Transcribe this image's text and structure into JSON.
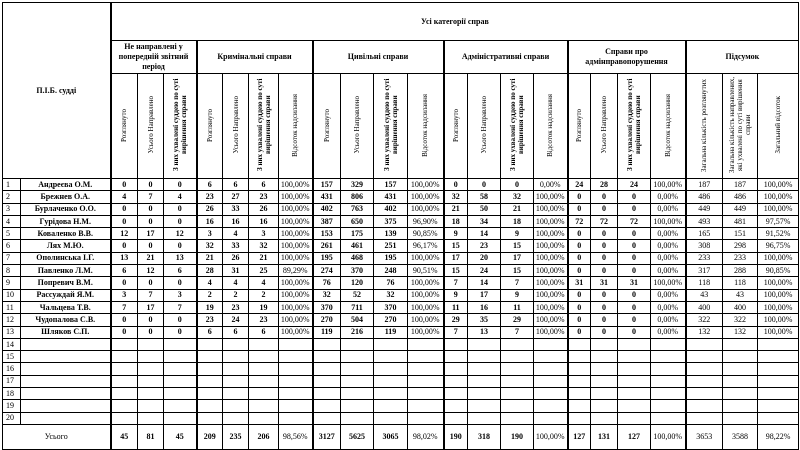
{
  "header": {
    "name_col": "П.І.Б. судді",
    "all_categories": "Усі категорії справ",
    "groups": {
      "not_sent": "Не направлені у попередній звітний період",
      "criminal": "Кримінальні справи",
      "civil": "Цивільні справи",
      "administrative": "Адміністративні справи",
      "offenses": "Справи про адмінправопорушення",
      "summary": "Підсумок"
    },
    "sub": {
      "considered": "Розглянуто",
      "total_sent": "Усього Направлено",
      "of_them": "З них ухвалені суддею по суті вирішення справи",
      "percent": "Відсоток надсилання",
      "sum_considered": "Загальна кількість розглянутих",
      "sum_sent": "Загальна кількість направлених, які ухвалені по суті вирішення справи",
      "sum_percent": "Загальний відсоток"
    }
  },
  "rows": [
    {
      "n": "1",
      "name": "Андреєва О.М.",
      "v": [
        "0",
        "0",
        "0",
        "6",
        "6",
        "6",
        "100,00%",
        "157",
        "329",
        "157",
        "100,00%",
        "0",
        "0",
        "0",
        "0,00%",
        "24",
        "28",
        "24",
        "100,00%",
        "187",
        "187",
        "100,00%"
      ]
    },
    {
      "n": "2",
      "name": "Брежнев О.А.",
      "v": [
        "4",
        "7",
        "4",
        "23",
        "27",
        "23",
        "100,00%",
        "431",
        "806",
        "431",
        "100,00%",
        "32",
        "58",
        "32",
        "100,00%",
        "0",
        "0",
        "0",
        "0,00%",
        "486",
        "486",
        "100,00%"
      ]
    },
    {
      "n": "3",
      "name": "Бурлаченко О.О.",
      "v": [
        "0",
        "0",
        "0",
        "26",
        "33",
        "26",
        "100,00%",
        "402",
        "763",
        "402",
        "100,00%",
        "21",
        "50",
        "21",
        "100,00%",
        "0",
        "0",
        "0",
        "0,00%",
        "449",
        "449",
        "100,00%"
      ]
    },
    {
      "n": "4",
      "name": "Гурідова Н.М.",
      "v": [
        "0",
        "0",
        "0",
        "16",
        "16",
        "16",
        "100,00%",
        "387",
        "650",
        "375",
        "96,90%",
        "18",
        "34",
        "18",
        "100,00%",
        "72",
        "72",
        "72",
        "100,00%",
        "493",
        "481",
        "97,57%"
      ]
    },
    {
      "n": "5",
      "name": "Коваленко В.В.",
      "v": [
        "12",
        "17",
        "12",
        "3",
        "4",
        "3",
        "100,00%",
        "153",
        "175",
        "139",
        "90,85%",
        "9",
        "14",
        "9",
        "100,00%",
        "0",
        "0",
        "0",
        "0,00%",
        "165",
        "151",
        "91,52%"
      ]
    },
    {
      "n": "6",
      "name": "Лях М.Ю.",
      "v": [
        "0",
        "0",
        "0",
        "32",
        "33",
        "32",
        "100,00%",
        "261",
        "461",
        "251",
        "96,17%",
        "15",
        "23",
        "15",
        "100,00%",
        "0",
        "0",
        "0",
        "0,00%",
        "308",
        "298",
        "96,75%"
      ]
    },
    {
      "n": "7",
      "name": "Ополинська І.Г.",
      "v": [
        "13",
        "21",
        "13",
        "21",
        "26",
        "21",
        "100,00%",
        "195",
        "468",
        "195",
        "100,00%",
        "17",
        "20",
        "17",
        "100,00%",
        "0",
        "0",
        "0",
        "0,00%",
        "233",
        "233",
        "100,00%"
      ]
    },
    {
      "n": "8",
      "name": "Павленко Л.М.",
      "v": [
        "6",
        "12",
        "6",
        "28",
        "31",
        "25",
        "89,29%",
        "274",
        "370",
        "248",
        "90,51%",
        "15",
        "24",
        "15",
        "100,00%",
        "0",
        "0",
        "0",
        "0,00%",
        "317",
        "288",
        "90,85%"
      ]
    },
    {
      "n": "9",
      "name": "Попревич В.М.",
      "v": [
        "0",
        "0",
        "0",
        "4",
        "4",
        "4",
        "100,00%",
        "76",
        "120",
        "76",
        "100,00%",
        "7",
        "14",
        "7",
        "100,00%",
        "31",
        "31",
        "31",
        "100,00%",
        "118",
        "118",
        "100,00%"
      ]
    },
    {
      "n": "10",
      "name": "Рассуждай Я.М.",
      "v": [
        "3",
        "7",
        "3",
        "2",
        "2",
        "2",
        "100,00%",
        "32",
        "52",
        "32",
        "100,00%",
        "9",
        "17",
        "9",
        "100,00%",
        "0",
        "0",
        "0",
        "0,00%",
        "43",
        "43",
        "100,00%"
      ]
    },
    {
      "n": "11",
      "name": "Чальцева Т.В.",
      "v": [
        "7",
        "17",
        "7",
        "19",
        "23",
        "19",
        "100,00%",
        "370",
        "711",
        "370",
        "100,00%",
        "11",
        "16",
        "11",
        "100,00%",
        "0",
        "0",
        "0",
        "0,00%",
        "400",
        "400",
        "100,00%"
      ]
    },
    {
      "n": "12",
      "name": "Чудопалова С.В.",
      "v": [
        "0",
        "0",
        "0",
        "23",
        "24",
        "23",
        "100,00%",
        "270",
        "504",
        "270",
        "100,00%",
        "29",
        "35",
        "29",
        "100,00%",
        "0",
        "0",
        "0",
        "0,00%",
        "322",
        "322",
        "100,00%"
      ]
    },
    {
      "n": "13",
      "name": "Шляков С.П.",
      "v": [
        "0",
        "0",
        "0",
        "6",
        "6",
        "6",
        "100,00%",
        "119",
        "216",
        "119",
        "100,00%",
        "7",
        "13",
        "7",
        "100,00%",
        "0",
        "0",
        "0",
        "0,00%",
        "132",
        "132",
        "100,00%"
      ]
    },
    {
      "n": "14",
      "name": "",
      "v": []
    },
    {
      "n": "15",
      "name": "",
      "v": []
    },
    {
      "n": "16",
      "name": "",
      "v": []
    },
    {
      "n": "17",
      "name": "",
      "v": []
    },
    {
      "n": "18",
      "name": "",
      "v": []
    },
    {
      "n": "19",
      "name": "",
      "v": []
    },
    {
      "n": "20",
      "name": "",
      "v": []
    }
  ],
  "total": {
    "label": "Усього",
    "v": [
      "45",
      "81",
      "45",
      "209",
      "235",
      "206",
      "98,56%",
      "3127",
      "5625",
      "3065",
      "98,02%",
      "190",
      "318",
      "190",
      "100,00%",
      "127",
      "131",
      "127",
      "100,00%",
      "3653",
      "3588",
      "98,22%"
    ]
  }
}
